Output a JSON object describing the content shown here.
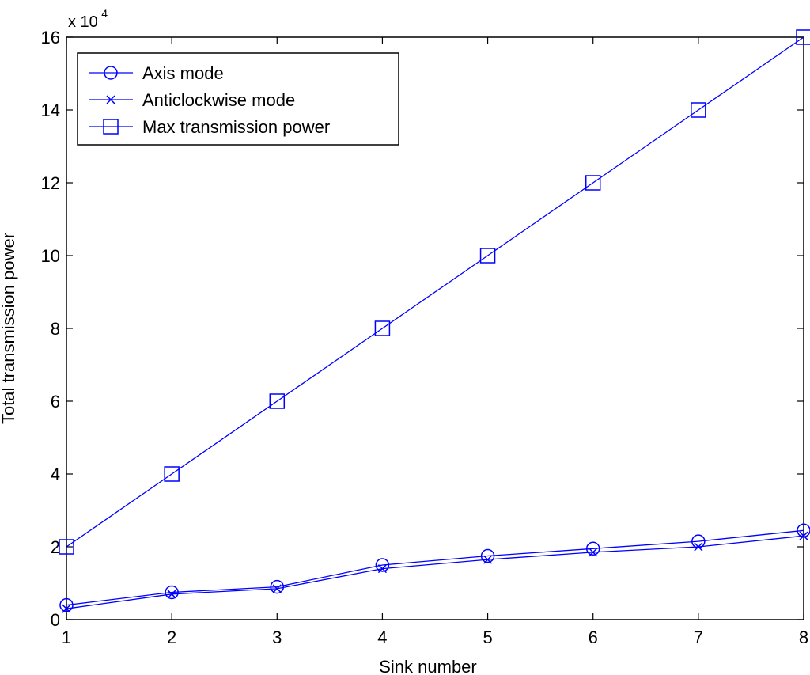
{
  "chart_data": {
    "type": "line",
    "xlabel": "Sink number",
    "ylabel": "Total transmission power",
    "y_multiplier": {
      "base": "x 10",
      "exponent": "4"
    },
    "xlim": [
      1,
      8
    ],
    "ylim": [
      0,
      16
    ],
    "x_ticks": [
      "1",
      "2",
      "3",
      "4",
      "5",
      "6",
      "7",
      "8"
    ],
    "y_ticks": [
      "0",
      "2",
      "4",
      "6",
      "8",
      "10",
      "12",
      "14",
      "16"
    ],
    "x": [
      1,
      2,
      3,
      4,
      5,
      6,
      7,
      8
    ],
    "grid": false,
    "legend_position": "top-left",
    "line_color": "#0000ff",
    "series": [
      {
        "name": "Axis mode",
        "marker": "circle",
        "values": [
          0.4,
          0.75,
          0.9,
          1.5,
          1.75,
          1.95,
          2.15,
          2.45
        ]
      },
      {
        "name": "Anticlockwise mode",
        "marker": "x",
        "values": [
          0.3,
          0.7,
          0.85,
          1.4,
          1.65,
          1.85,
          2.0,
          2.3
        ]
      },
      {
        "name": "Max transmission power",
        "marker": "square",
        "values": [
          2,
          4,
          6,
          8,
          10,
          12,
          14,
          16
        ]
      }
    ]
  }
}
